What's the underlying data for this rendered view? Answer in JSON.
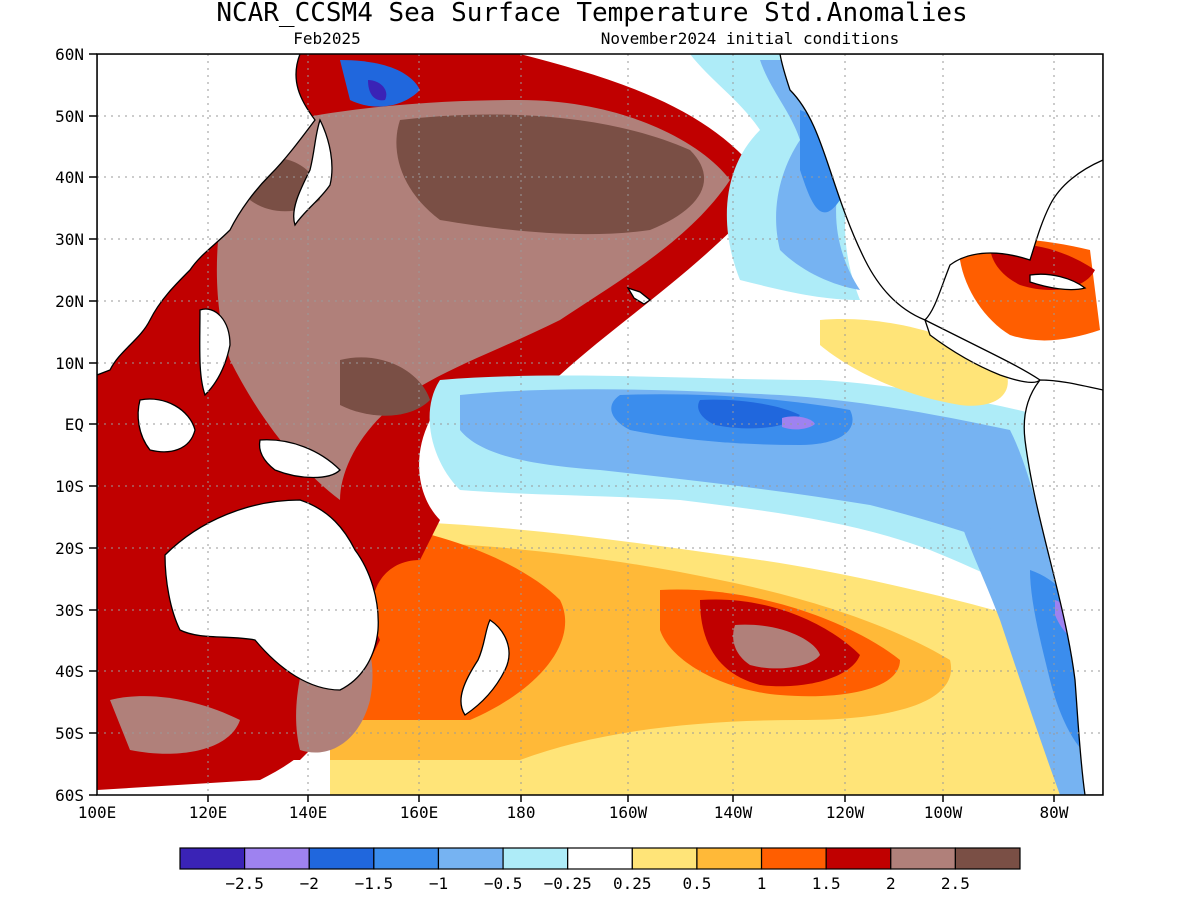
{
  "header": {
    "title": "NCAR_CCSM4 Sea Surface Temperature Std.Anomalies",
    "valid_month": "Feb2025",
    "init_conditions": "November2024 initial conditions"
  },
  "axes": {
    "lat_labels": [
      "60N",
      "50N",
      "40N",
      "30N",
      "20N",
      "10N",
      "EQ",
      "10S",
      "20S",
      "30S",
      "40S",
      "50S",
      "60S"
    ],
    "lon_labels": [
      "100E",
      "120E",
      "140E",
      "160E",
      "180",
      "160W",
      "140W",
      "120W",
      "100W",
      "80W"
    ]
  },
  "colorbar": {
    "colors": [
      "#3a23b6",
      "#9e82f0",
      "#2067dd",
      "#3b8ded",
      "#76b3f2",
      "#aeecf8",
      "#ffffff",
      "#ffe478",
      "#ffb938",
      "#ff5e00",
      "#c00000",
      "#b0807a",
      "#7a4f45"
    ],
    "tick_labels": [
      "−2.5",
      "−2",
      "−1.5",
      "−1",
      "−0.5",
      "−0.25",
      "0.25",
      "0.5",
      "1",
      "1.5",
      "2",
      "2.5"
    ]
  },
  "legend_colors": {
    "land": "#ffffff",
    "coastline": "#000000",
    "grid": "#9a9a9a"
  }
}
